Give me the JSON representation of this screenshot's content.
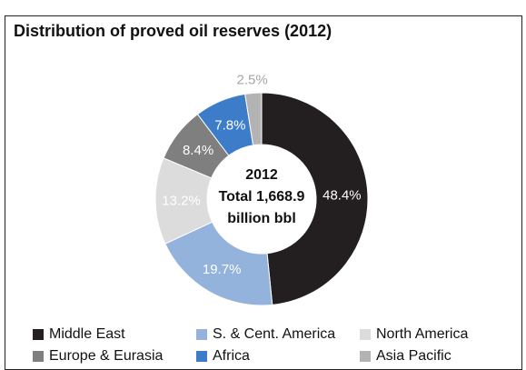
{
  "chart_data": {
    "type": "pie",
    "title": "Distribution of proved oil reserves (2012)",
    "center_label": [
      "2012",
      "Total 1,668.9",
      "billion bbl"
    ],
    "slices": [
      {
        "name": "Middle East",
        "value": 48.4,
        "label": "48.4%",
        "color": "#231f20",
        "label_color": "#ffffff"
      },
      {
        "name": "S. & Cent. America",
        "value": 19.7,
        "label": "19.7%",
        "color": "#93b2dc",
        "label_color": "#ffffff"
      },
      {
        "name": "North America",
        "value": 13.2,
        "label": "13.2%",
        "color": "#dcdcdc",
        "label_color": "#ffffff"
      },
      {
        "name": "Europe & Eurasia",
        "value": 8.4,
        "label": "8.4%",
        "color": "#7f7f7f",
        "label_color": "#ffffff"
      },
      {
        "name": "Africa",
        "value": 7.8,
        "label": "7.8%",
        "color": "#3d7cc9",
        "label_color": "#ffffff"
      },
      {
        "name": "Asia Pacific",
        "value": 2.5,
        "label": "2.5%",
        "color": "#b3b3b3",
        "label_color": "#a6a6a6"
      }
    ],
    "legend": [
      "Middle East",
      "S. & Cent. America",
      "North America",
      "Europe & Eurasia",
      "Africa",
      "Asia Pacific"
    ],
    "legend_placement": "bottom"
  }
}
